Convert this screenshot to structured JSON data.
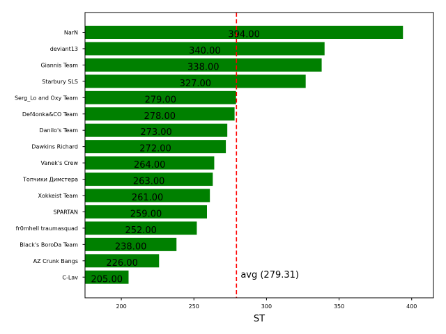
{
  "chart_data": {
    "type": "bar",
    "orientation": "horizontal",
    "categories": [
      "NarN",
      "deviant13",
      "Giannis Team",
      "Starbury SLS",
      "Serg_Lo and Oxy Team",
      "Def4onka&CO Team",
      "Danilo's Team",
      "Dawkins Richard",
      "Vanek's Crew",
      "Топчики Димстера",
      "Xokkeist Team",
      "SPARTAN",
      "fr0mhell traumasquad",
      "Black's BoroDa Team",
      "AZ Crunk Bangs",
      "C-Lav"
    ],
    "values": [
      394.0,
      340.0,
      338.0,
      327.0,
      279.0,
      278.0,
      273.0,
      272.0,
      264.0,
      263.0,
      261.0,
      259.0,
      252.0,
      238.0,
      226.0,
      205.0
    ],
    "value_labels": [
      "394.00",
      "340.00",
      "338.00",
      "327.00",
      "279.00",
      "278.00",
      "273.00",
      "272.00",
      "264.00",
      "263.00",
      "261.00",
      "259.00",
      "252.00",
      "238.00",
      "226.00",
      "205.00"
    ],
    "xlabel": "ST",
    "ylabel": "",
    "xlim": [
      175,
      415
    ],
    "xticks": [
      200,
      250,
      300,
      350,
      400
    ],
    "avg": 279.31,
    "avg_label": "avg (279.31)",
    "grid": false,
    "bar_color": "#008000",
    "avg_line_color": "#ff0000"
  }
}
